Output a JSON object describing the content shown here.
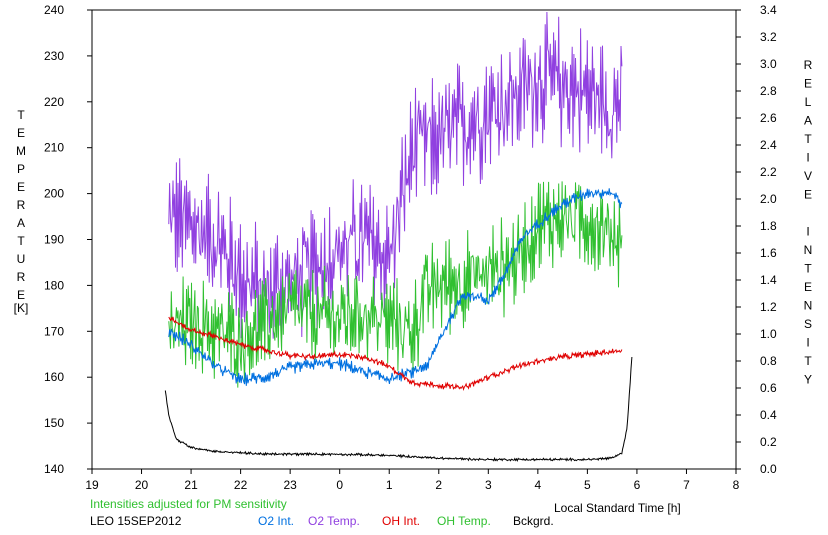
{
  "chart_data": {
    "type": "line",
    "xlabel": "Local Standard Time [h]",
    "ylabel_left": "TEMPERATURE",
    "ylabel_left_unit": "[K]",
    "ylabel_right": "RELATIVE INTENSITY",
    "x_ticks": [
      "19",
      "20",
      "21",
      "22",
      "23",
      "0",
      "1",
      "2",
      "3",
      "4",
      "5",
      "6",
      "7",
      "8"
    ],
    "xlim": [
      19,
      32
    ],
    "ylim_left": [
      140,
      240
    ],
    "y_ticks_left": [
      140,
      150,
      160,
      170,
      180,
      190,
      200,
      210,
      220,
      230,
      240
    ],
    "ylim_right": [
      0.0,
      3.4
    ],
    "y_ticks_right": [
      "0.0",
      "0.2",
      "0.4",
      "0.6",
      "0.8",
      "1.0",
      "1.2",
      "1.4",
      "1.6",
      "1.8",
      "2.0",
      "2.2",
      "2.4",
      "2.6",
      "2.8",
      "3.0",
      "3.2",
      "3.4"
    ],
    "grid": false,
    "note": "Intensities adjusted for PM sensitivity",
    "station": "LEO 15SEP2012",
    "legend": [
      {
        "label": "O2 Int.",
        "color": "#0070e0"
      },
      {
        "label": "O2 Temp.",
        "color": "#9040e0"
      },
      {
        "label": "OH Int.",
        "color": "#e00000"
      },
      {
        "label": "OH Temp.",
        "color": "#30c030"
      },
      {
        "label": "Bckgrd.",
        "color": "#000000"
      }
    ],
    "series": [
      {
        "name": "O2 Temp.",
        "axis": "left",
        "color": "#9040e0",
        "noise": 12,
        "x": [
          20.55,
          21.0,
          21.5,
          22.0,
          22.5,
          23.0,
          23.5,
          24.0,
          24.5,
          25.0,
          25.2,
          25.5,
          26.0,
          26.5,
          27.0,
          27.5,
          28.0,
          28.5,
          29.0,
          29.5,
          29.7
        ],
        "y": [
          195,
          193,
          190,
          182,
          178,
          181,
          184,
          188,
          190,
          186,
          196,
          210,
          212,
          215,
          218,
          221,
          225,
          224,
          222,
          219,
          221
        ]
      },
      {
        "name": "OH Temp.",
        "axis": "left",
        "color": "#30c030",
        "noise": 9,
        "x": [
          20.55,
          21.0,
          21.5,
          22.0,
          22.5,
          23.0,
          23.5,
          24.0,
          24.5,
          25.0,
          25.5,
          25.7,
          26.0,
          26.5,
          27.0,
          27.5,
          28.0,
          28.5,
          29.0,
          29.5,
          29.7
        ],
        "y": [
          170,
          172,
          170,
          168,
          171,
          175,
          173,
          173,
          174,
          172,
          170,
          178,
          180,
          181,
          183,
          185,
          193,
          195,
          194,
          191,
          190
        ]
      },
      {
        "name": "O2 Int.",
        "axis": "right",
        "color": "#0070e0",
        "noise": 0.04,
        "x": [
          20.55,
          21.0,
          21.5,
          22.0,
          22.5,
          23.0,
          23.5,
          24.0,
          24.5,
          25.0,
          25.5,
          25.8,
          26.0,
          26.5,
          27.0,
          27.3,
          27.7,
          28.0,
          28.5,
          29.0,
          29.5,
          29.7
        ],
        "y": [
          1.02,
          0.92,
          0.76,
          0.66,
          0.68,
          0.75,
          0.78,
          0.78,
          0.72,
          0.67,
          0.72,
          0.78,
          0.95,
          1.3,
          1.25,
          1.42,
          1.72,
          1.82,
          1.96,
          2.05,
          2.05,
          1.96
        ]
      },
      {
        "name": "OH Int.",
        "axis": "right",
        "color": "#e00000",
        "noise": 0.02,
        "x": [
          20.55,
          21.0,
          21.5,
          22.0,
          22.5,
          23.0,
          23.5,
          24.0,
          24.5,
          25.0,
          25.3,
          25.5,
          26.0,
          26.5,
          27.0,
          27.5,
          28.0,
          28.5,
          29.0,
          29.5,
          29.7
        ],
        "y": [
          1.12,
          1.03,
          0.98,
          0.92,
          0.88,
          0.84,
          0.83,
          0.85,
          0.83,
          0.76,
          0.68,
          0.64,
          0.62,
          0.6,
          0.68,
          0.75,
          0.8,
          0.83,
          0.85,
          0.87,
          0.88
        ]
      },
      {
        "name": "Bckgrd.",
        "axis": "right",
        "color": "#000000",
        "noise": 0.008,
        "x": [
          20.48,
          20.55,
          20.7,
          21.0,
          21.5,
          22.0,
          22.5,
          23.0,
          24.0,
          25.0,
          26.0,
          27.0,
          28.0,
          29.0,
          29.5,
          29.7,
          29.8,
          29.9
        ],
        "y": [
          0.58,
          0.4,
          0.22,
          0.16,
          0.13,
          0.12,
          0.11,
          0.11,
          0.11,
          0.1,
          0.08,
          0.07,
          0.07,
          0.07,
          0.08,
          0.12,
          0.3,
          0.84
        ]
      }
    ]
  }
}
